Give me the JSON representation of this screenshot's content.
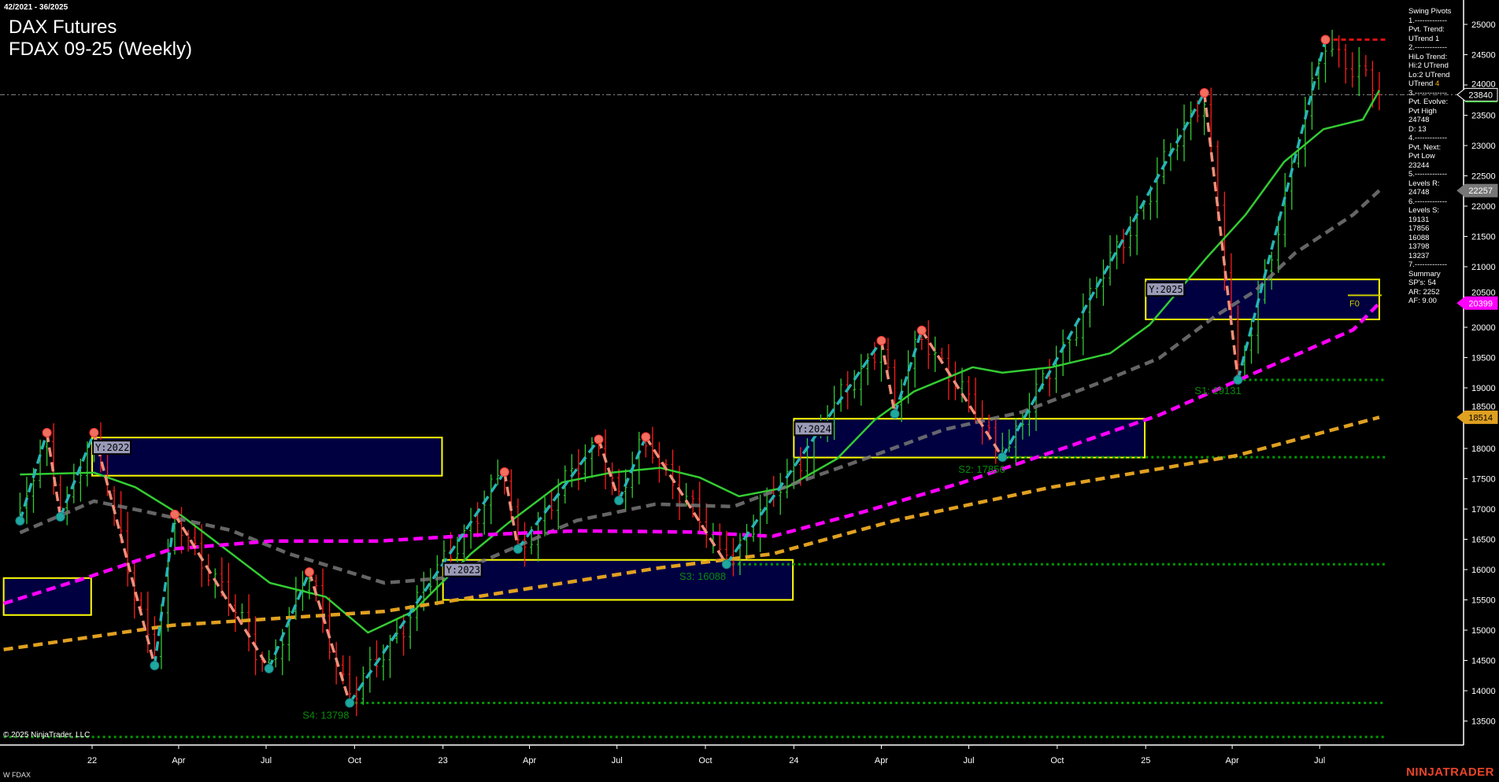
{
  "header": {
    "date_range": "42/2021 - 36/2025",
    "instrument": "DAX Futures",
    "contract": "FDAX 09-25 (Weekly)"
  },
  "panel": {
    "lines": [
      "Swing Pivots",
      "1.-------------",
      "Pvt. Trend:",
      "UTrend 1",
      "2.-------------",
      "HiLo Trend:",
      "Hi:2 UTrend",
      "Lo:2 UTrend",
      "UTrend 4",
      "3.-------------",
      "Pvt. Evolve:",
      "Pvt High",
      "24748",
      "D: 13",
      "4.-------------",
      "Pvt. Next:",
      "Pvt Low",
      "23244",
      "5.-------------",
      "Levels R:",
      "24748",
      "6.-------------",
      "Levels S:",
      "19131",
      "17856",
      "16088",
      "13798",
      "13237",
      "7.-------------",
      "Summary",
      "SP's: 54",
      "AR: 2252",
      "AF: 9.00"
    ]
  },
  "footer": {
    "copyright": "© 2025 NinjaTrader, LLC",
    "symbol": "W FDAX",
    "logo": "NINJATRADER"
  },
  "colors": {
    "background": "#000000",
    "up_bar": "#33cc33",
    "down_bar": "#ff1a1a",
    "up_leg": "#26b5b5",
    "down_leg": "#f0907a",
    "fast_ma": "#33cc33",
    "mid_ma": "#777777",
    "slow_ma": "#ff00ff",
    "long_ma": "#e0a020",
    "support": "#009900",
    "resistance": "#e01010",
    "year_box_fill": "#000040",
    "year_box_border": "#ffff00"
  },
  "chart_data": {
    "type": "ohlc",
    "timeframe": "weekly",
    "first_bar": "2021-10-18",
    "last_bar": "2025-09-01",
    "ylim": [
      12900,
      25400
    ],
    "y_ticks": [
      "13500",
      "14000",
      "14500",
      "15000",
      "15500",
      "16000",
      "16500",
      "17000",
      "17500",
      "18000",
      "18500",
      "19000",
      "19500",
      "20000",
      "20500",
      "21000",
      "21500",
      "22000",
      "22500",
      "23000",
      "23500",
      "24000",
      "24500",
      "25000"
    ],
    "x_ticks": [
      {
        "label": "22",
        "date": "2022-01-01"
      },
      {
        "label": "Apr",
        "date": "2022-04-01"
      },
      {
        "label": "Jul",
        "date": "2022-07-01"
      },
      {
        "label": "Oct",
        "date": "2022-10-01"
      },
      {
        "label": "23",
        "date": "2023-01-01"
      },
      {
        "label": "Apr",
        "date": "2023-04-01"
      },
      {
        "label": "Jul",
        "date": "2023-07-01"
      },
      {
        "label": "Oct",
        "date": "2023-10-01"
      },
      {
        "label": "24",
        "date": "2024-01-01"
      },
      {
        "label": "Apr",
        "date": "2024-04-01"
      },
      {
        "label": "Jul",
        "date": "2024-07-01"
      },
      {
        "label": "Oct",
        "date": "2024-10-01"
      },
      {
        "label": "25",
        "date": "2025-01-01"
      },
      {
        "label": "Apr",
        "date": "2025-04-01"
      },
      {
        "label": "Jul",
        "date": "2025-07-01"
      }
    ],
    "last_price": 23840,
    "pivots": [
      {
        "date": "2021-10-18",
        "price": 16805,
        "type": "low"
      },
      {
        "date": "2021-11-15",
        "price": 18260,
        "type": "high"
      },
      {
        "date": "2021-11-29",
        "price": 16870,
        "type": "low"
      },
      {
        "date": "2022-01-03",
        "price": 18260,
        "type": "high"
      },
      {
        "date": "2022-03-07",
        "price": 14415,
        "type": "low"
      },
      {
        "date": "2022-03-28",
        "price": 16910,
        "type": "high"
      },
      {
        "date": "2022-07-04",
        "price": 14365,
        "type": "low"
      },
      {
        "date": "2022-08-15",
        "price": 15960,
        "type": "high"
      },
      {
        "date": "2022-09-26",
        "price": 13798,
        "type": "low"
      },
      {
        "date": "2023-03-06",
        "price": 17610,
        "type": "high"
      },
      {
        "date": "2023-03-20",
        "price": 16340,
        "type": "low"
      },
      {
        "date": "2023-06-12",
        "price": 18150,
        "type": "high"
      },
      {
        "date": "2023-07-03",
        "price": 17140,
        "type": "low"
      },
      {
        "date": "2023-07-31",
        "price": 18190,
        "type": "high"
      },
      {
        "date": "2023-10-23",
        "price": 16088,
        "type": "low"
      },
      {
        "date": "2024-04-01",
        "price": 19780,
        "type": "high"
      },
      {
        "date": "2024-04-15",
        "price": 18570,
        "type": "low"
      },
      {
        "date": "2024-05-13",
        "price": 19950,
        "type": "high"
      },
      {
        "date": "2024-08-05",
        "price": 17856,
        "type": "low"
      },
      {
        "date": "2025-03-03",
        "price": 23870,
        "type": "high"
      },
      {
        "date": "2025-04-07",
        "price": 19131,
        "type": "low"
      },
      {
        "date": "2025-07-07",
        "price": 24748,
        "type": "high"
      },
      {
        "date": "2025-09-01",
        "price": 23840,
        "type": "last"
      }
    ],
    "moving_averages": [
      {
        "id": "fast",
        "style": "solid",
        "color": "#33cc33",
        "points": [
          [
            "2021-10-18",
            17570
          ],
          [
            "2022-01-03",
            17600
          ],
          [
            "2022-02-15",
            17360
          ],
          [
            "2022-04-05",
            16880
          ],
          [
            "2022-07-05",
            15780
          ],
          [
            "2022-09-01",
            15550
          ],
          [
            "2022-10-15",
            14960
          ],
          [
            "2022-12-01",
            15310
          ],
          [
            "2023-01-30",
            16260
          ],
          [
            "2023-03-10",
            16770
          ],
          [
            "2023-05-05",
            17440
          ],
          [
            "2023-06-25",
            17600
          ],
          [
            "2023-08-15",
            17680
          ],
          [
            "2023-09-25",
            17520
          ],
          [
            "2023-11-05",
            17210
          ],
          [
            "2023-12-25",
            17360
          ],
          [
            "2024-02-15",
            17830
          ],
          [
            "2024-03-25",
            18470
          ],
          [
            "2024-05-05",
            18940
          ],
          [
            "2024-07-05",
            19340
          ],
          [
            "2024-08-05",
            19250
          ],
          [
            "2024-09-25",
            19340
          ],
          [
            "2024-11-25",
            19570
          ],
          [
            "2025-01-05",
            20040
          ],
          [
            "2025-03-05",
            21140
          ],
          [
            "2025-04-15",
            21860
          ],
          [
            "2025-05-25",
            22730
          ],
          [
            "2025-07-05",
            23270
          ],
          [
            "2025-08-15",
            23430
          ],
          [
            "2025-09-01",
            23910
          ]
        ]
      },
      {
        "id": "mid",
        "style": "dashed",
        "color": "#777777",
        "points": [
          [
            "2021-10-18",
            16610
          ],
          [
            "2022-01-03",
            17130
          ],
          [
            "2022-02-25",
            16960
          ],
          [
            "2022-05-25",
            16650
          ],
          [
            "2022-07-25",
            16260
          ],
          [
            "2022-11-01",
            15780
          ],
          [
            "2023-01-01",
            15860
          ],
          [
            "2023-03-01",
            16260
          ],
          [
            "2023-05-20",
            16810
          ],
          [
            "2023-08-10",
            17080
          ],
          [
            "2023-10-30",
            17040
          ],
          [
            "2024-01-05",
            17440
          ],
          [
            "2024-03-15",
            17830
          ],
          [
            "2024-06-05",
            18310
          ],
          [
            "2024-08-25",
            18600
          ],
          [
            "2024-11-15",
            19090
          ],
          [
            "2025-01-15",
            19490
          ],
          [
            "2025-03-15",
            20190
          ],
          [
            "2025-04-25",
            20600
          ],
          [
            "2025-06-05",
            21220
          ],
          [
            "2025-08-05",
            21860
          ],
          [
            "2025-09-01",
            22257
          ]
        ]
      },
      {
        "id": "slow",
        "style": "dashed",
        "color": "#ff00ff",
        "points": [
          [
            "2021-10-01",
            15440
          ],
          [
            "2021-12-25",
            15860
          ],
          [
            "2022-03-25",
            16340
          ],
          [
            "2022-07-05",
            16470
          ],
          [
            "2022-10-25",
            16470
          ],
          [
            "2023-02-05",
            16570
          ],
          [
            "2023-05-20",
            16640
          ],
          [
            "2023-09-15",
            16620
          ],
          [
            "2023-12-10",
            16550
          ],
          [
            "2024-03-15",
            16960
          ],
          [
            "2024-06-25",
            17440
          ],
          [
            "2024-10-05",
            17990
          ],
          [
            "2025-01-15",
            18550
          ],
          [
            "2025-04-25",
            19250
          ],
          [
            "2025-08-05",
            19960
          ],
          [
            "2025-09-01",
            20399
          ]
        ]
      },
      {
        "id": "long",
        "style": "dashed",
        "color": "#e0a020",
        "points": [
          [
            "2021-10-01",
            14680
          ],
          [
            "2022-03-25",
            15080
          ],
          [
            "2022-11-01",
            15310
          ],
          [
            "2023-04-05",
            15700
          ],
          [
            "2023-08-15",
            16030
          ],
          [
            "2023-12-10",
            16260
          ],
          [
            "2024-04-15",
            16810
          ],
          [
            "2024-09-25",
            17360
          ],
          [
            "2025-04-05",
            17880
          ],
          [
            "2025-09-01",
            18514
          ]
        ]
      }
    ],
    "price_markers": [
      {
        "value": "23840",
        "color": "#000000",
        "text_color": "#ffffff"
      },
      {
        "value": "22257",
        "color": "#777777",
        "text_color": "#ffffff"
      },
      {
        "value": "20399",
        "color": "#ff00ff",
        "text_color": "#ffffff"
      },
      {
        "value": "18514",
        "color": "#e0a020",
        "text_color": "#000000"
      }
    ],
    "year_boxes": [
      {
        "label": "",
        "start": "2021-10-01",
        "end": "2021-12-31",
        "high": 15860,
        "low": 15250
      },
      {
        "label": "Y:2022",
        "start": "2022-01-01",
        "end": "2022-12-31",
        "high": 18180,
        "low": 17550
      },
      {
        "label": "Y:2023",
        "start": "2023-01-01",
        "end": "2023-12-31",
        "high": 16160,
        "low": 15500
      },
      {
        "label": "Y:2024",
        "start": "2024-01-01",
        "end": "2024-12-31",
        "high": 18490,
        "low": 17850
      },
      {
        "label": "Y:2025",
        "start": "2025-01-01",
        "end": "2025-09-01",
        "high": 20790,
        "low": 20130
      }
    ],
    "levels": [
      {
        "label": "S1: 19131",
        "value": 19131,
        "from": "2025-04-07",
        "kind": "support"
      },
      {
        "label": "S2: 17856",
        "value": 17856,
        "from": "2024-08-05",
        "kind": "support"
      },
      {
        "label": "S3: 16088",
        "value": 16088,
        "from": "2023-10-23",
        "kind": "support"
      },
      {
        "label": "S4: 13798",
        "value": 13798,
        "from": "2022-09-26",
        "kind": "support"
      },
      {
        "label": "",
        "value": 13237,
        "from": "2021-10-01",
        "kind": "support"
      },
      {
        "label": "",
        "value": 24748,
        "from": "2025-07-07",
        "kind": "resistance"
      }
    ],
    "fib_label": "F0",
    "fib_value": 20450
  }
}
